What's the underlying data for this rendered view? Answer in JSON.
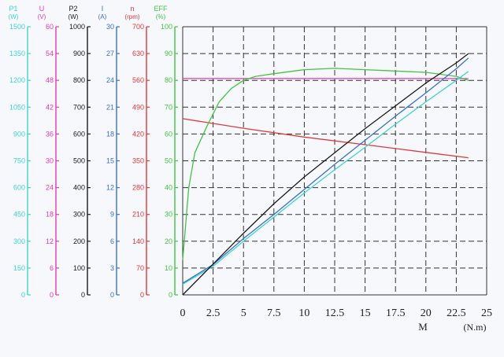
{
  "chart_data": {
    "type": "line",
    "xlabel": "M",
    "xunit": "(N.m)",
    "xlim": [
      0,
      25
    ],
    "x_ticks": [
      "0",
      "2.5",
      "5",
      "7.5",
      "10",
      "12.5",
      "15",
      "17.5",
      "20",
      "22.5",
      "25"
    ],
    "grid": true,
    "axes": [
      {
        "id": "p1",
        "label": "P1",
        "unit": "(W)",
        "color": "#3fd3d3",
        "ticks": [
          "0",
          "150",
          "300",
          "450",
          "600",
          "750",
          "900",
          "1050",
          "1200",
          "1350",
          "1500"
        ]
      },
      {
        "id": "u",
        "label": "U",
        "unit": "(V)",
        "color": "#e23ab8",
        "ticks": [
          "0",
          "6",
          "12",
          "18",
          "24",
          "30",
          "36",
          "42",
          "48",
          "54",
          "60"
        ]
      },
      {
        "id": "p2",
        "label": "P2",
        "unit": "(W)",
        "color": "#1a1a1a",
        "ticks": [
          "0",
          "100",
          "200",
          "300",
          "400",
          "500",
          "600",
          "700",
          "800",
          "900",
          "1000"
        ]
      },
      {
        "id": "i",
        "label": "I",
        "unit": "(A)",
        "color": "#3b6fc8",
        "ticks": [
          "0",
          "3",
          "6",
          "9",
          "12",
          "15",
          "18",
          "21",
          "24",
          "27",
          "30"
        ]
      },
      {
        "id": "n",
        "label": "n",
        "unit": "(rpm)",
        "color": "#e0393b",
        "ticks": [
          "0",
          "70",
          "140",
          "210",
          "280",
          "350",
          "420",
          "490",
          "560",
          "630",
          "700"
        ]
      },
      {
        "id": "eff",
        "label": "EFF",
        "unit": "(%)",
        "color": "#43c443",
        "ticks": [
          "0",
          "10",
          "20",
          "30",
          "40",
          "50",
          "60",
          "70",
          "80",
          "90",
          "100"
        ]
      }
    ],
    "series": [
      {
        "axis": "u",
        "color": "#e23ab8",
        "x": [
          0,
          23.5
        ],
        "y": [
          48.4,
          48.4
        ]
      },
      {
        "axis": "n",
        "color": "#e0393b",
        "x": [
          0,
          5,
          10,
          15,
          20,
          23.5
        ],
        "y": [
          460,
          435,
          412,
          392,
          372,
          358
        ]
      },
      {
        "axis": "eff",
        "color": "#43c443",
        "x": [
          0,
          0.5,
          1,
          2,
          3,
          4,
          5,
          6,
          7.5,
          10,
          12.5,
          15,
          17.5,
          20,
          22.5,
          23.5
        ],
        "y": [
          13,
          40,
          53,
          63,
          72,
          77,
          80,
          81.5,
          82.5,
          84,
          84.5,
          84,
          83.5,
          83,
          81.5,
          80
        ]
      },
      {
        "axis": "p1",
        "color": "#3fd3d3",
        "x": [
          0,
          2.5,
          5,
          7.5,
          10,
          12.5,
          15,
          17.5,
          20,
          22.5,
          23.5
        ],
        "y": [
          60,
          160,
          300,
          435,
          570,
          700,
          825,
          955,
          1080,
          1200,
          1250
        ]
      },
      {
        "axis": "i",
        "color": "#3b6fc8",
        "x": [
          0,
          2.5,
          5,
          7.5,
          10,
          12.5,
          15,
          17.5,
          20,
          22.5,
          23.5
        ],
        "y": [
          1.3,
          3.4,
          6.3,
          9.0,
          11.8,
          14.6,
          17.3,
          20.0,
          22.6,
          25.3,
          26.5
        ]
      },
      {
        "axis": "p2",
        "color": "#1a1a1a",
        "x": [
          0,
          2.5,
          5,
          7.5,
          10,
          12.5,
          15,
          17.5,
          20,
          22.5,
          23.5
        ],
        "y": [
          0,
          115,
          230,
          340,
          440,
          530,
          620,
          705,
          790,
          865,
          900
        ]
      }
    ]
  }
}
